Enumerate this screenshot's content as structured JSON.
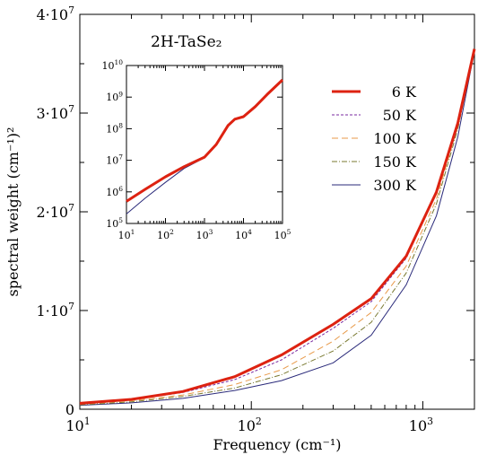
{
  "chart_data": [
    {
      "type": "line",
      "title": "2H-TaSe₂",
      "xlabel": "Frequency (cm⁻¹)",
      "ylabel": "spectral weight (cm⁻¹)²",
      "xscale": "log",
      "xlim": [
        10,
        2000
      ],
      "ylim": [
        0,
        40000000
      ],
      "grid": false,
      "legend_position": "top-right",
      "x_ticks": [
        {
          "value": 10,
          "base": "10",
          "exp": "1"
        },
        {
          "value": 100,
          "base": "10",
          "exp": "2"
        },
        {
          "value": 1000,
          "base": "10",
          "exp": "3"
        }
      ],
      "y_ticks": [
        {
          "value": 0,
          "label": "0",
          "exp": ""
        },
        {
          "value": 10000000,
          "label": "1·10",
          "exp": "7"
        },
        {
          "value": 20000000,
          "label": "2·10",
          "exp": "7"
        },
        {
          "value": 30000000,
          "label": "3·10",
          "exp": "7"
        },
        {
          "value": 40000000,
          "label": "4·10",
          "exp": "7"
        }
      ],
      "series": [
        {
          "name": "6 K",
          "color": "#dd2211",
          "dash": "",
          "width": 3,
          "x": [
            10,
            20,
            40,
            80,
            150,
            300,
            500,
            800,
            1200,
            1600,
            2000
          ],
          "y": [
            600000,
            1000000,
            1800000,
            3300000,
            5500000,
            8600000,
            11200000,
            15500000,
            22000000,
            29000000,
            36500000
          ]
        },
        {
          "name": "50 K",
          "color": "#7a2aa0",
          "dash": "3,2",
          "width": 1,
          "x": [
            10,
            20,
            40,
            80,
            150,
            300,
            500,
            800,
            1200,
            1600,
            2000
          ],
          "y": [
            550000,
            950000,
            1700000,
            3000000,
            5000000,
            8200000,
            10900000,
            15300000,
            21900000,
            29000000,
            36400000
          ]
        },
        {
          "name": "100 K",
          "color": "#e89a4a",
          "dash": "7,4",
          "width": 1,
          "x": [
            10,
            20,
            40,
            80,
            150,
            300,
            500,
            800,
            1200,
            1600,
            2000
          ],
          "y": [
            500000,
            850000,
            1450000,
            2500000,
            4000000,
            6900000,
            9800000,
            14500000,
            21300000,
            28700000,
            36600000
          ]
        },
        {
          "name": "150 K",
          "color": "#7a7a32",
          "dash": "6,2,1,2",
          "width": 1,
          "x": [
            10,
            20,
            40,
            80,
            150,
            300,
            500,
            800,
            1200,
            1600,
            2000
          ],
          "y": [
            450000,
            750000,
            1300000,
            2150000,
            3500000,
            5900000,
            8800000,
            13800000,
            20800000,
            28400000,
            36500000
          ]
        },
        {
          "name": "300 K",
          "color": "#2a2a7a",
          "dash": "",
          "width": 1,
          "x": [
            10,
            20,
            40,
            80,
            150,
            300,
            500,
            800,
            1200,
            1600,
            2000
          ],
          "y": [
            400000,
            650000,
            1100000,
            1900000,
            2900000,
            4700000,
            7500000,
            12600000,
            19600000,
            27600000,
            36300000
          ]
        }
      ]
    },
    {
      "type": "line",
      "title": "",
      "xscale": "log",
      "yscale": "log",
      "xlim": [
        10,
        100000
      ],
      "ylim": [
        100000,
        10000000000
      ],
      "x_ticks": [
        {
          "value": 10,
          "base": "10",
          "exp": "1"
        },
        {
          "value": 100,
          "base": "10",
          "exp": "2"
        },
        {
          "value": 1000,
          "base": "10",
          "exp": "3"
        },
        {
          "value": 10000,
          "base": "10",
          "exp": "4"
        },
        {
          "value": 100000,
          "base": "10",
          "exp": "5"
        }
      ],
      "y_ticks": [
        {
          "value": 100000,
          "base": "10",
          "exp": "5"
        },
        {
          "value": 1000000,
          "base": "10",
          "exp": "6"
        },
        {
          "value": 10000000,
          "base": "10",
          "exp": "7"
        },
        {
          "value": 100000000,
          "base": "10",
          "exp": "8"
        },
        {
          "value": 1000000000,
          "base": "10",
          "exp": "9"
        },
        {
          "value": 10000000000,
          "base": "10",
          "exp": "10"
        }
      ],
      "series": [
        {
          "name": "6 K",
          "color": "#dd2211",
          "width": 3,
          "x": [
            10,
            30,
            100,
            300,
            1000,
            2000,
            4000,
            6000,
            10000,
            20000,
            40000,
            100000
          ],
          "y": [
            500000,
            1200000,
            3000000,
            6300000,
            12600000,
            31600000,
            126000000,
            200000000,
            240000000,
            500000000,
            1200000000,
            3500000000
          ]
        },
        {
          "name": "300 K",
          "color": "#2a2a7a",
          "width": 1,
          "x": [
            10,
            30,
            100,
            300,
            1000,
            2000,
            4000,
            6000,
            10000,
            20000,
            40000,
            100000
          ],
          "y": [
            200000,
            630000,
            2000000,
            5500000,
            12000000,
            30000000,
            125000000,
            200000000,
            240000000,
            500000000,
            1200000000,
            3500000000
          ]
        }
      ]
    }
  ]
}
